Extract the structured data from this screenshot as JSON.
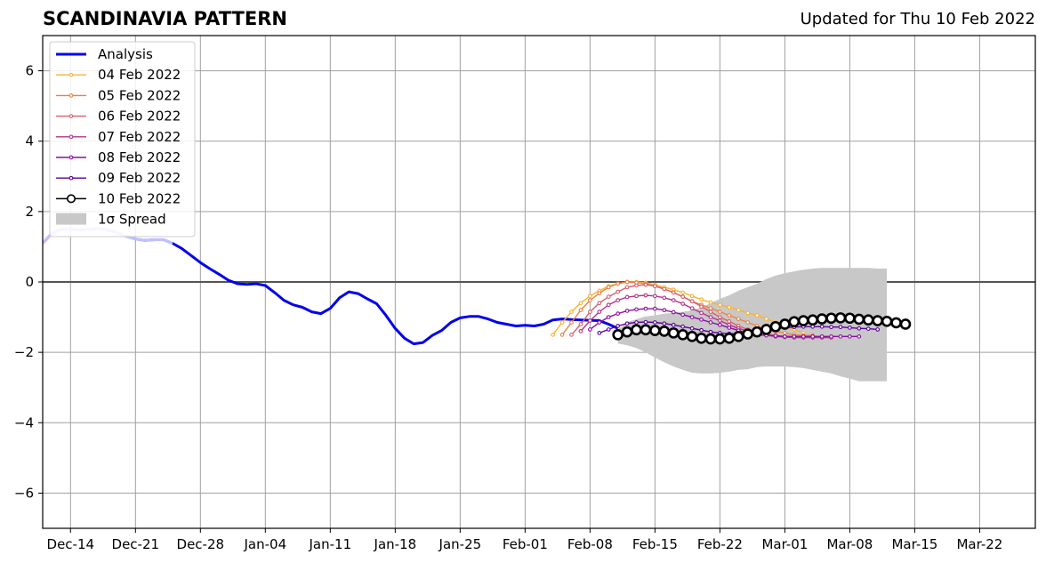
{
  "page": {
    "title": "SCANDINAVIA PATTERN",
    "subtitle": "Updated for Thu 10 Feb 2022"
  },
  "chart_data": {
    "type": "line",
    "title": "SCANDINAVIA PATTERN",
    "subtitle": "Updated for Thu 10 Feb 2022",
    "xlabel": "",
    "ylabel": "",
    "xlim": [
      "2021-12-11",
      "2022-03-28"
    ],
    "ylim": [
      -7,
      7
    ],
    "x_ticks": [
      "Dec-14",
      "Dec-21",
      "Dec-28",
      "Jan-04",
      "Jan-11",
      "Jan-18",
      "Jan-25",
      "Feb-01",
      "Feb-08",
      "Feb-15",
      "Feb-22",
      "Mar-01",
      "Mar-08",
      "Mar-15",
      "Mar-22"
    ],
    "y_ticks": [
      6,
      4,
      2,
      0,
      -2,
      -4,
      -6
    ],
    "y_tick_labels": [
      "6",
      "4",
      "2",
      "0",
      "−2",
      "−4",
      "−6"
    ],
    "grid": true,
    "legend_position": "top-left",
    "legend": [
      "Analysis",
      "04 Feb 2022",
      "05 Feb 2022",
      "06 Feb 2022",
      "07 Feb 2022",
      "08 Feb 2022",
      "09 Feb 2022",
      "10 Feb 2022",
      "1σ Spread"
    ],
    "colors": {
      "analysis": "#0000ee",
      "04 Feb 2022": "#f9b230",
      "05 Feb 2022": "#ee8040",
      "06 Feb 2022": "#d95f6e",
      "07 Feb 2022": "#b3338c",
      "08 Feb 2022": "#8a10a0",
      "09 Feb 2022": "#5a0099",
      "10 Feb 2022": "#000000",
      "spread": "#c8c8c8"
    },
    "analysis": {
      "name": "Analysis",
      "start": "2021-12-11",
      "note_faded_until": "2021-12-25",
      "values": [
        1.1,
        1.38,
        1.5,
        1.5,
        1.48,
        1.5,
        1.52,
        1.48,
        1.4,
        1.3,
        1.22,
        1.18,
        1.2,
        1.2,
        1.1,
        0.95,
        0.75,
        0.55,
        0.38,
        0.22,
        0.05,
        -0.05,
        -0.07,
        -0.05,
        -0.1,
        -0.3,
        -0.52,
        -0.65,
        -0.72,
        -0.85,
        -0.9,
        -0.75,
        -0.45,
        -0.28,
        -0.33,
        -0.48,
        -0.62,
        -0.95,
        -1.32,
        -1.6,
        -1.76,
        -1.72,
        -1.52,
        -1.38,
        -1.15,
        -1.02,
        -0.98,
        -0.98,
        -1.05,
        -1.15,
        -1.2,
        -1.25,
        -1.23,
        -1.25,
        -1.2,
        -1.08,
        -1.05,
        -1.07,
        -1.08,
        -1.09,
        -1.1,
        -1.2,
        -1.32
      ]
    },
    "spread": {
      "start": "2022-02-11",
      "upper": [
        -1.35,
        -1.15,
        -1.05,
        -0.98,
        -0.95,
        -0.9,
        -0.88,
        -0.85,
        -0.8,
        -0.72,
        -0.6,
        -0.48,
        -0.38,
        -0.25,
        -0.15,
        -0.05,
        0.08,
        0.18,
        0.25,
        0.3,
        0.35,
        0.38,
        0.4,
        0.4,
        0.4,
        0.4,
        0.4,
        0.4,
        0.38,
        0.38
      ],
      "lower": [
        -1.75,
        -1.8,
        -1.88,
        -2.0,
        -2.15,
        -2.28,
        -2.4,
        -2.5,
        -2.58,
        -2.6,
        -2.6,
        -2.58,
        -2.55,
        -2.5,
        -2.48,
        -2.42,
        -2.4,
        -2.4,
        -2.4,
        -2.42,
        -2.45,
        -2.5,
        -2.55,
        -2.6,
        -2.68,
        -2.75,
        -2.82,
        -2.82,
        -2.82,
        -2.82
      ]
    },
    "series": [
      {
        "name": "04 Feb 2022",
        "start": "2022-02-04",
        "marker": "small",
        "values": [
          -1.5,
          -1.15,
          -0.85,
          -0.6,
          -0.4,
          -0.25,
          -0.12,
          -0.05,
          0.0,
          0.0,
          -0.02,
          -0.08,
          -0.15,
          -0.22,
          -0.3,
          -0.4,
          -0.5,
          -0.58,
          -0.65,
          -0.72,
          -0.8,
          -0.88,
          -0.95,
          -1.05,
          -1.15,
          -1.25,
          -1.35,
          -1.45
        ]
      },
      {
        "name": "05 Feb 2022",
        "start": "2022-02-05",
        "marker": "small",
        "values": [
          -1.5,
          -1.15,
          -0.8,
          -0.52,
          -0.32,
          -0.15,
          -0.05,
          0.0,
          -0.02,
          -0.05,
          -0.12,
          -0.2,
          -0.3,
          -0.42,
          -0.55,
          -0.65,
          -0.75,
          -0.85,
          -0.95,
          -1.05,
          -1.15,
          -1.25,
          -1.35,
          -1.4,
          -1.45,
          -1.5,
          -1.52,
          -1.52
        ]
      },
      {
        "name": "06 Feb 2022",
        "start": "2022-02-06",
        "marker": "small",
        "values": [
          -1.5,
          -1.2,
          -0.85,
          -0.6,
          -0.42,
          -0.28,
          -0.15,
          -0.1,
          -0.08,
          -0.12,
          -0.2,
          -0.3,
          -0.42,
          -0.55,
          -0.7,
          -0.85,
          -1.0,
          -1.12,
          -1.25,
          -1.35,
          -1.42,
          -1.48,
          -1.52,
          -1.55,
          -1.55,
          -1.55,
          -1.55,
          -1.55
        ]
      },
      {
        "name": "07 Feb 2022",
        "start": "2022-02-07",
        "marker": "small",
        "values": [
          -1.4,
          -1.1,
          -0.85,
          -0.65,
          -0.52,
          -0.43,
          -0.4,
          -0.38,
          -0.4,
          -0.45,
          -0.52,
          -0.62,
          -0.75,
          -0.88,
          -1.0,
          -1.1,
          -1.22,
          -1.32,
          -1.4,
          -1.48,
          -1.52,
          -1.55,
          -1.57,
          -1.58,
          -1.58,
          -1.58,
          -1.58,
          -1.58
        ]
      },
      {
        "name": "08 Feb 2022",
        "start": "2022-02-08",
        "marker": "small",
        "values": [
          -1.35,
          -1.15,
          -1.0,
          -0.9,
          -0.82,
          -0.78,
          -0.76,
          -0.76,
          -0.8,
          -0.86,
          -0.93,
          -1.0,
          -1.07,
          -1.15,
          -1.22,
          -1.3,
          -1.38,
          -1.45,
          -1.5,
          -1.52,
          -1.53,
          -1.55,
          -1.55,
          -1.55,
          -1.55,
          -1.55,
          -1.55,
          -1.55,
          -1.55,
          -1.55
        ]
      },
      {
        "name": "09 Feb 2022",
        "start": "2022-02-09",
        "marker": "small",
        "values": [
          -1.45,
          -1.35,
          -1.25,
          -1.18,
          -1.15,
          -1.14,
          -1.15,
          -1.18,
          -1.22,
          -1.27,
          -1.32,
          -1.37,
          -1.42,
          -1.45,
          -1.47,
          -1.47,
          -1.45,
          -1.42,
          -1.38,
          -1.33,
          -1.3,
          -1.28,
          -1.27,
          -1.27,
          -1.27,
          -1.28,
          -1.28,
          -1.3,
          -1.32,
          -1.33,
          -1.35
        ]
      },
      {
        "name": "10 Feb 2022",
        "start": "2022-02-11",
        "marker": "large",
        "values": [
          -1.5,
          -1.42,
          -1.36,
          -1.36,
          -1.38,
          -1.4,
          -1.45,
          -1.5,
          -1.55,
          -1.6,
          -1.62,
          -1.62,
          -1.6,
          -1.55,
          -1.48,
          -1.42,
          -1.35,
          -1.27,
          -1.2,
          -1.13,
          -1.1,
          -1.08,
          -1.05,
          -1.03,
          -1.02,
          -1.03,
          -1.06,
          -1.08,
          -1.1,
          -1.12,
          -1.16,
          -1.2
        ]
      }
    ]
  }
}
